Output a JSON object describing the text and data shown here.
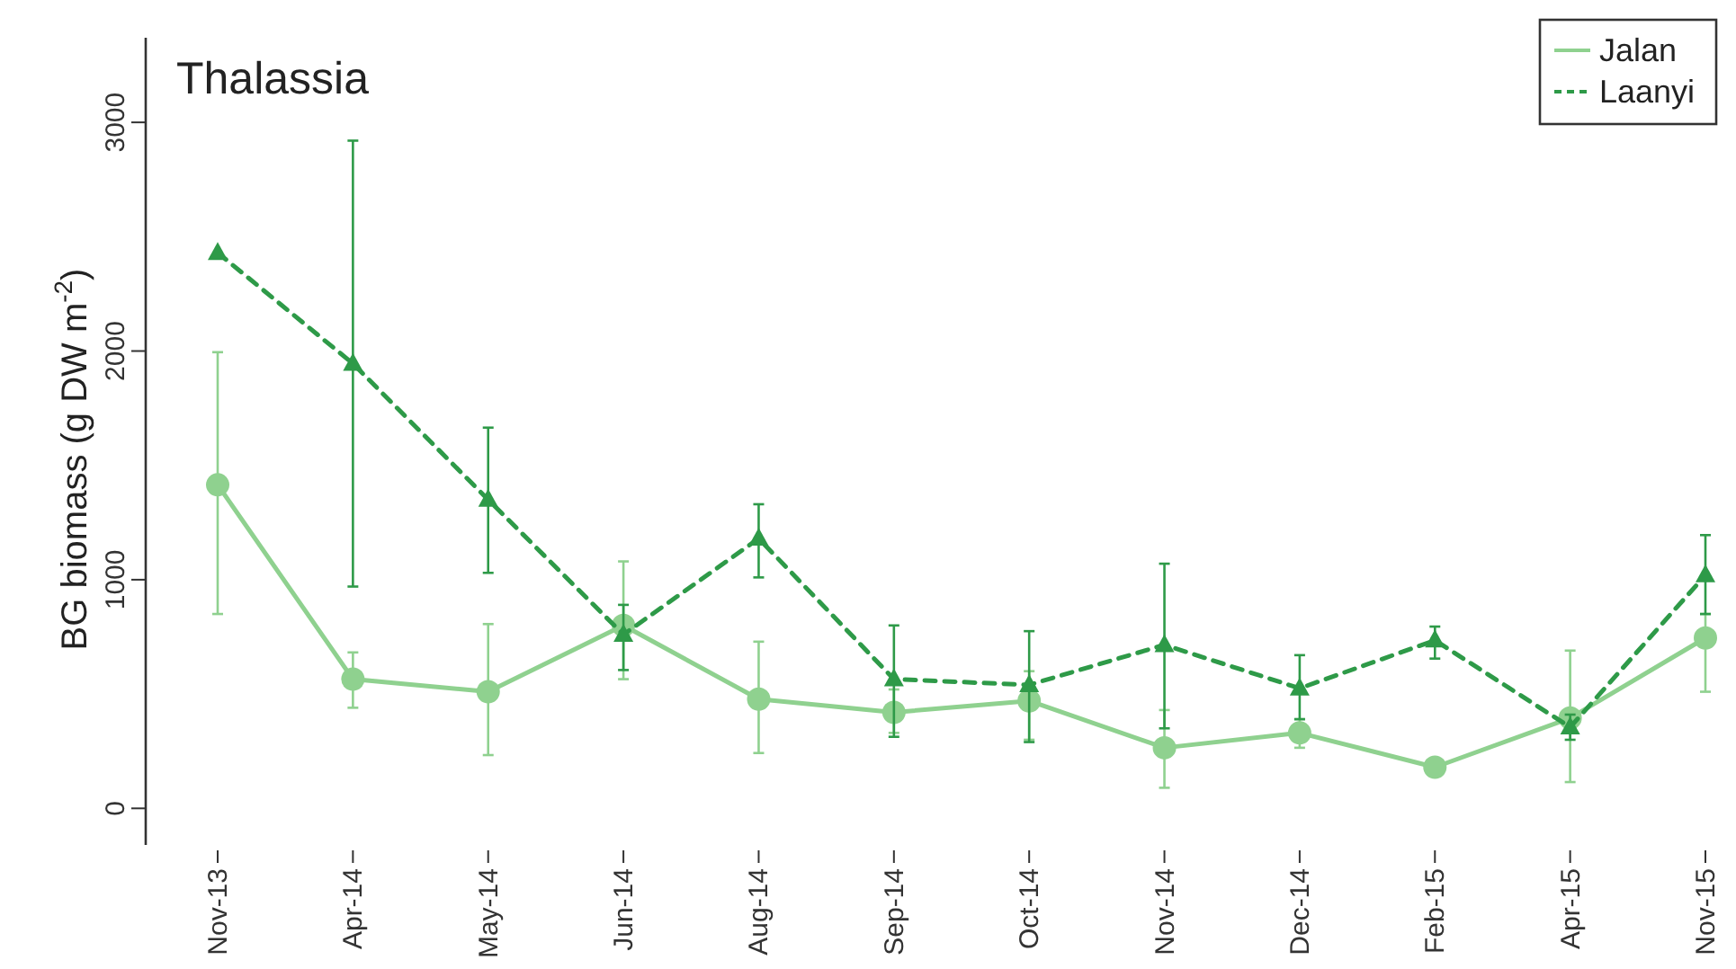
{
  "chart_data": {
    "type": "line",
    "title": "Thalassia",
    "ylabel": "BG biomass  (g DW m$^{-2}$)",
    "categories": [
      "Nov-13",
      "Apr-14",
      "May-14",
      "Jun-14",
      "Aug-14",
      "Sep-14",
      "Oct-14",
      "Nov-14",
      "Dec-14",
      "Feb-15",
      "Apr-15",
      "Nov-15"
    ],
    "series": [
      {
        "name": "Jalan",
        "color": "#8fd18f",
        "marker": "circle",
        "line_style": "solid",
        "values": [
          1415,
          565,
          510,
          800,
          478,
          420,
          470,
          265,
          330,
          180,
          395,
          745
        ],
        "errors": [
          [
            850,
            1995
          ],
          [
            440,
            682
          ],
          [
            233,
            806
          ],
          [
            565,
            1080
          ],
          [
            242,
            729
          ],
          [
            330,
            520
          ],
          [
            300,
            600
          ],
          [
            90,
            430
          ],
          [
            265,
            390
          ],
          [
            150,
            210
          ],
          [
            115,
            690
          ],
          [
            510,
            850
          ]
        ]
      },
      {
        "name": "Laanyi",
        "color": "#2e9a48",
        "marker": "triangle",
        "line_style": "dashed",
        "values": [
          2430,
          1945,
          1350,
          760,
          1180,
          565,
          540,
          715,
          525,
          735,
          355,
          1020
        ],
        "errors": [
          null,
          [
            970,
            2920
          ],
          [
            1030,
            1665
          ],
          [
            605,
            890
          ],
          [
            1010,
            1330
          ],
          [
            313,
            800
          ],
          [
            290,
            775
          ],
          [
            350,
            1070
          ],
          [
            390,
            670
          ],
          [
            655,
            795
          ],
          [
            300,
            410
          ],
          [
            850,
            1195
          ]
        ]
      }
    ],
    "ylim": [
      -160,
      3370
    ],
    "yticks": [
      0,
      1000,
      2000,
      3000
    ],
    "grid": false,
    "legend": "top right"
  }
}
